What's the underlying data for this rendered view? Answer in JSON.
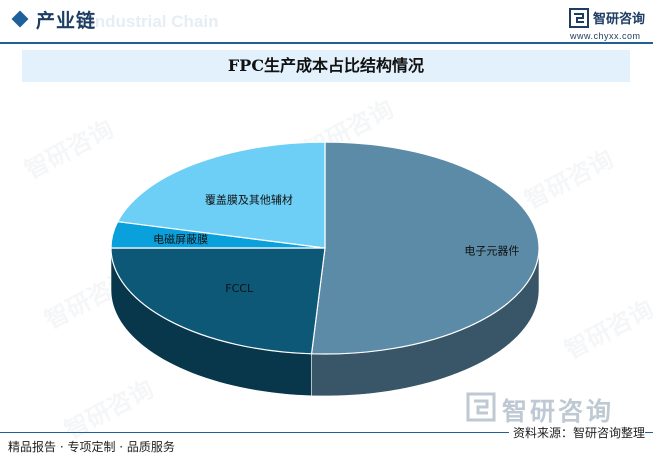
{
  "header": {
    "section_title": "产业链",
    "section_title_en": "Industrial Chain",
    "brand": "智研咨询",
    "site": "www.chyxx.com"
  },
  "watermark_text": "智研咨询",
  "chart_data": {
    "type": "pie",
    "title": "FPC生产成本占比结构情况",
    "categories": [
      "电子元器件",
      "FCCL",
      "电磁屏蔽膜",
      "覆盖膜及其他辅材"
    ],
    "values": [
      51,
      24,
      4,
      21
    ],
    "unit": "%",
    "style": "3d",
    "colors": [
      "#5b8ba6",
      "#0d5777",
      "#0aa0dc",
      "#6ecff6"
    ],
    "legend": "none"
  },
  "footer": {
    "left": "精品报告 · 专项定制 · 品质服务",
    "source": "资料来源：智研咨询整理"
  }
}
